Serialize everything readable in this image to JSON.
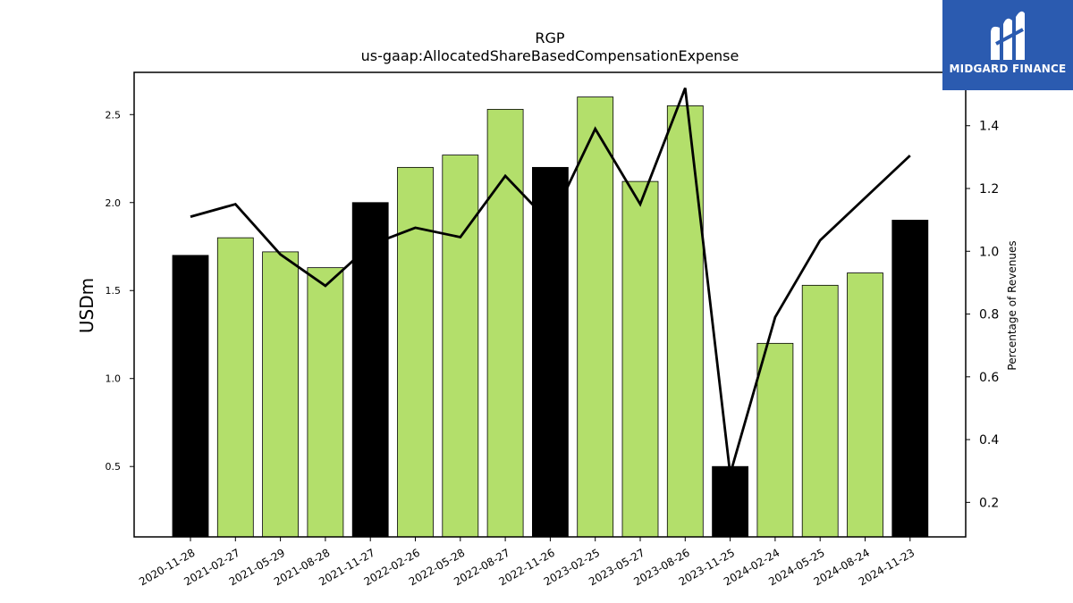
{
  "logo": {
    "text": "MIDGARD FINANCE"
  },
  "chart_data": {
    "type": "bar",
    "title": "RGP",
    "subtitle": "us-gaap:AllocatedShareBasedCompensationExpense",
    "ylabel": "USDm",
    "y2label": "Percentage of Revenues",
    "categories": [
      "2020-11-28",
      "2021-02-27",
      "2021-05-29",
      "2021-08-28",
      "2021-11-27",
      "2022-02-26",
      "2022-05-28",
      "2022-08-27",
      "2022-11-26",
      "2023-02-25",
      "2023-05-27",
      "2023-08-26",
      "2023-11-25",
      "2024-02-24",
      "2024-05-25",
      "2024-08-24",
      "2024-11-23"
    ],
    "series": [
      {
        "values": [
          1.7,
          1.8,
          1.72,
          1.63,
          2.0,
          2.2,
          2.27,
          2.53,
          2.2,
          2.6,
          2.12,
          2.55,
          0.5,
          1.2,
          1.53,
          1.6,
          1.9
        ]
      },
      {
        "values": [
          1.11,
          1.15,
          0.99,
          0.89,
          1.02,
          1.075,
          1.045,
          1.24,
          1.09,
          1.39,
          1.15,
          1.52,
          0.29,
          0.79,
          1.035,
          1.17,
          1.305
        ]
      }
    ],
    "bar_colors": [
      "#000000",
      "#b3df6b",
      "#b3df6b",
      "#b3df6b",
      "#000000",
      "#b3df6b",
      "#b3df6b",
      "#b3df6b",
      "#000000",
      "#b3df6b",
      "#b3df6b",
      "#b3df6b",
      "#000000",
      "#b3df6b",
      "#b3df6b",
      "#b3df6b",
      "#000000"
    ],
    "line_color": "#000000",
    "ylim": [
      0.1,
      2.74
    ],
    "y2lim": [
      0.09,
      1.57
    ],
    "yticks": [
      "0.5",
      "1.0",
      "1.5",
      "2.0",
      "2.5"
    ],
    "y2ticks": [
      "0.2",
      "0.4",
      "0.6",
      "0.8",
      "1.0",
      "1.2",
      "1.4"
    ],
    "grid": false
  }
}
